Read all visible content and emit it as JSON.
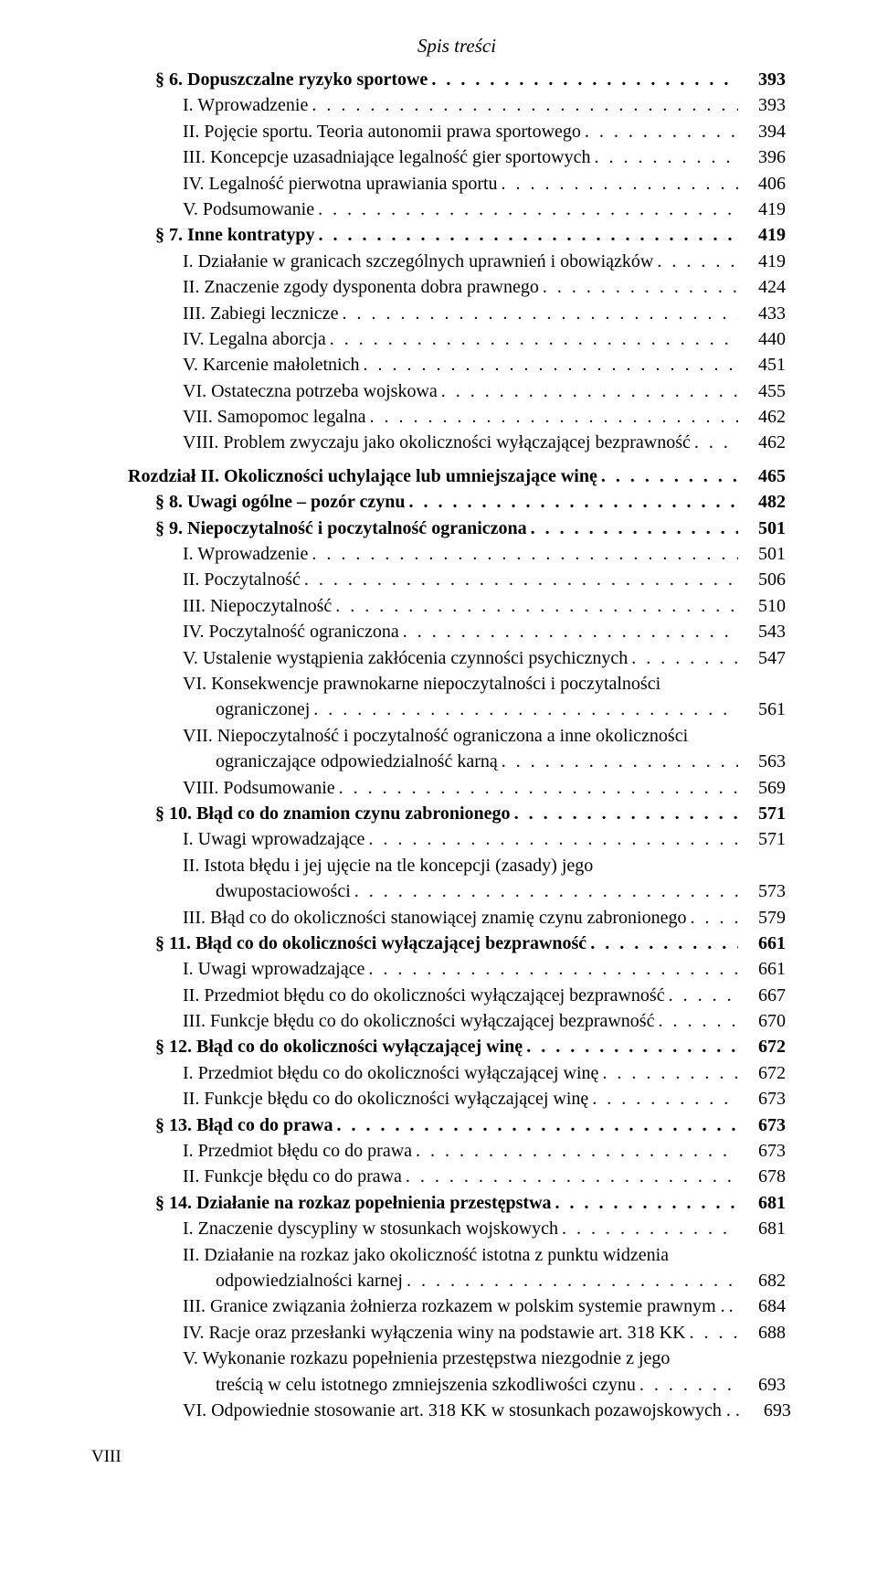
{
  "header": "Spis treści",
  "footer": "VIII",
  "toc": [
    {
      "level": 1,
      "bold": true,
      "label": "§ 6.  Dopuszczalne ryzyko sportowe",
      "page": "393"
    },
    {
      "level": 2,
      "label": "I.  Wprowadzenie",
      "page": "393"
    },
    {
      "level": 2,
      "label": "II.  Pojęcie sportu. Teoria autonomii prawa sportowego",
      "page": "394"
    },
    {
      "level": 2,
      "label": "III.  Koncepcje uzasadniające legalność gier sportowych",
      "page": "396"
    },
    {
      "level": 2,
      "label": "IV.  Legalność pierwotna uprawiania sportu",
      "page": "406"
    },
    {
      "level": 2,
      "label": "V.  Podsumowanie",
      "page": "419"
    },
    {
      "level": 1,
      "bold": true,
      "label": "§ 7.  Inne kontratypy",
      "page": "419"
    },
    {
      "level": 2,
      "label": "I.  Działanie w granicach szczególnych uprawnień i obowiązków",
      "page": "419"
    },
    {
      "level": 2,
      "label": "II.  Znaczenie zgody dysponenta dobra prawnego",
      "page": "424"
    },
    {
      "level": 2,
      "label": "III.  Zabiegi lecznicze",
      "page": "433"
    },
    {
      "level": 2,
      "label": "IV.  Legalna aborcja",
      "page": "440"
    },
    {
      "level": 2,
      "label": "V.  Karcenie małoletnich",
      "page": "451"
    },
    {
      "level": 2,
      "label": "VI.  Ostateczna potrzeba wojskowa",
      "page": "455"
    },
    {
      "level": 2,
      "label": "VII.  Samopomoc legalna",
      "page": "462"
    },
    {
      "level": 2,
      "label": "VIII.  Problem zwyczaju jako okoliczności wyłączającej bezprawność",
      "page": "462"
    },
    {
      "level": 0,
      "bold": true,
      "gap": true,
      "label": "Rozdział II. Okoliczności uchylające lub umniejszające winę",
      "page": "465"
    },
    {
      "level": 1,
      "bold": true,
      "label": "§ 8.  Uwagi ogólne – pozór czynu",
      "page": "482"
    },
    {
      "level": 1,
      "bold": true,
      "label": "§ 9.  Niepoczytalność i poczytalność ograniczona",
      "page": "501"
    },
    {
      "level": 2,
      "label": "I.  Wprowadzenie",
      "page": "501"
    },
    {
      "level": 2,
      "label": "II.  Poczytalność",
      "page": "506"
    },
    {
      "level": 2,
      "label": "III.  Niepoczytalność",
      "page": "510"
    },
    {
      "level": 2,
      "label": "IV.  Poczytalność ograniczona",
      "page": "543"
    },
    {
      "level": 2,
      "label": "V.  Ustalenie wystąpienia zakłócenia czynności psychicznych",
      "page": "547"
    },
    {
      "level": 2,
      "nodots": true,
      "label": "VI.  Konsekwencje prawnokarne niepoczytalności i poczytalności"
    },
    {
      "level": 2,
      "cont": true,
      "label": "ograniczonej",
      "page": "561"
    },
    {
      "level": 2,
      "nodots": true,
      "label": "VII.  Niepoczytalność i poczytalność ograniczona a inne okoliczności"
    },
    {
      "level": 2,
      "cont": true,
      "label": "ograniczające odpowiedzialność karną",
      "page": "563"
    },
    {
      "level": 2,
      "label": "VIII.  Podsumowanie",
      "page": "569"
    },
    {
      "level": 1,
      "bold": true,
      "label": "§ 10.  Błąd co do znamion czynu zabronionego",
      "page": "571"
    },
    {
      "level": 2,
      "label": "I.  Uwagi wprowadzające",
      "page": "571"
    },
    {
      "level": 2,
      "nodots": true,
      "label": "II.  Istota błędu i jej ujęcie na tle koncepcji (zasady) jego"
    },
    {
      "level": 2,
      "cont": true,
      "label": "dwupostaciowości",
      "page": "573"
    },
    {
      "level": 2,
      "label": "III.  Błąd co do okoliczności stanowiącej znamię czynu zabronionego",
      "page": "579"
    },
    {
      "level": 1,
      "bold": true,
      "label": "§ 11.  Błąd co do okoliczności wyłączającej bezprawność",
      "page": "661"
    },
    {
      "level": 2,
      "label": "I.  Uwagi wprowadzające",
      "page": "661"
    },
    {
      "level": 2,
      "label": "II.  Przedmiot błędu co do okoliczności wyłączającej bezprawność",
      "page": "667"
    },
    {
      "level": 2,
      "label": "III.  Funkcje błędu co do okoliczności wyłączającej bezprawność",
      "page": "670"
    },
    {
      "level": 1,
      "bold": true,
      "label": "§ 12.  Błąd co do okoliczności wyłączającej winę",
      "page": "672"
    },
    {
      "level": 2,
      "label": "I.  Przedmiot błędu co do okoliczności wyłączającej winę",
      "page": "672"
    },
    {
      "level": 2,
      "label": "II.  Funkcje błędu co do okoliczności wyłączającej winę",
      "page": "673"
    },
    {
      "level": 1,
      "bold": true,
      "label": "§ 13.  Błąd co do prawa",
      "page": "673"
    },
    {
      "level": 2,
      "label": "I.  Przedmiot błędu co do prawa",
      "page": "673"
    },
    {
      "level": 2,
      "label": "II.  Funkcje błędu co do prawa",
      "page": "678"
    },
    {
      "level": 1,
      "bold": true,
      "label": "§ 14.  Działanie na rozkaz popełnienia przestępstwa",
      "page": "681"
    },
    {
      "level": 2,
      "label": "I.  Znaczenie dyscypliny w stosunkach wojskowych",
      "page": "681"
    },
    {
      "level": 2,
      "nodots": true,
      "label": "II.  Działanie na rozkaz jako okoliczność istotna z punktu widzenia"
    },
    {
      "level": 2,
      "cont": true,
      "label": "odpowiedzialności karnej",
      "page": "682"
    },
    {
      "level": 2,
      "label": "III.  Granice związania żołnierza rozkazem w polskim systemie prawnym .",
      "page": "684"
    },
    {
      "level": 2,
      "label": "IV.  Racje oraz przesłanki wyłączenia winy na podstawie art. 318 KK",
      "page": "688"
    },
    {
      "level": 2,
      "nodots": true,
      "label": "V.  Wykonanie rozkazu popełnienia przestępstwa niezgodnie z jego"
    },
    {
      "level": 2,
      "cont": true,
      "label": "treścią w celu istotnego zmniejszenia szkodliwości czynu",
      "page": "693"
    },
    {
      "level": 2,
      "label": "VI.  Odpowiednie stosowanie art. 318 KK w stosunkach pozawojskowych . .",
      "page": "693"
    }
  ]
}
